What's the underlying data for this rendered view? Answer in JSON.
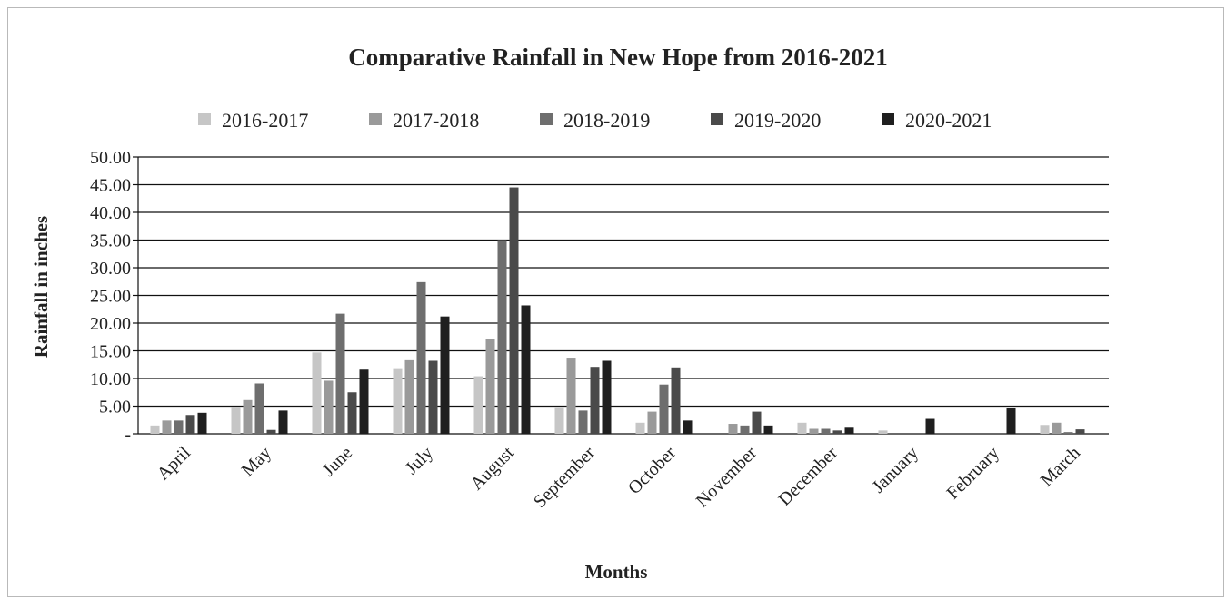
{
  "chart_data": {
    "type": "bar",
    "title": "Comparative Rainfall in New Hope from 2016-2021",
    "xlabel": "Months",
    "ylabel": "Rainfall in inches",
    "ylim": [
      0,
      50
    ],
    "yticks": [
      "-",
      "5.00",
      "10.00",
      "15.00",
      "20.00",
      "25.00",
      "30.00",
      "35.00",
      "40.00",
      "45.00",
      "50.00"
    ],
    "grid": true,
    "legend_position": "top",
    "categories": [
      "April",
      "May",
      "June",
      "July",
      "August",
      "September",
      "October",
      "November",
      "December",
      "January",
      "February",
      "March"
    ],
    "series": [
      {
        "name": "2016-2017",
        "color": "#c6c6c6",
        "values": [
          1.5,
          4.9,
          14.7,
          11.7,
          10.4,
          4.8,
          2.0,
          0.0,
          2.0,
          0.6,
          0.0,
          1.6
        ]
      },
      {
        "name": "2017-2018",
        "color": "#9a9a9a",
        "values": [
          2.4,
          6.1,
          9.6,
          13.3,
          17.1,
          13.6,
          4.0,
          1.8,
          0.9,
          0.0,
          0.0,
          2.0
        ]
      },
      {
        "name": "2018-2019",
        "color": "#6e6e6e",
        "values": [
          2.4,
          9.1,
          21.7,
          27.4,
          35.0,
          4.2,
          8.9,
          1.5,
          0.9,
          0.0,
          0.0,
          0.3
        ]
      },
      {
        "name": "2019-2020",
        "color": "#4a4a4a",
        "values": [
          3.4,
          0.7,
          7.5,
          13.2,
          44.5,
          12.1,
          12.0,
          4.0,
          0.6,
          0.0,
          0.0,
          0.8
        ]
      },
      {
        "name": "2020-2021",
        "color": "#1f1f1f",
        "values": [
          3.8,
          4.2,
          11.6,
          21.2,
          23.2,
          13.2,
          2.4,
          1.5,
          1.1,
          2.7,
          4.7,
          0.0
        ]
      }
    ]
  }
}
